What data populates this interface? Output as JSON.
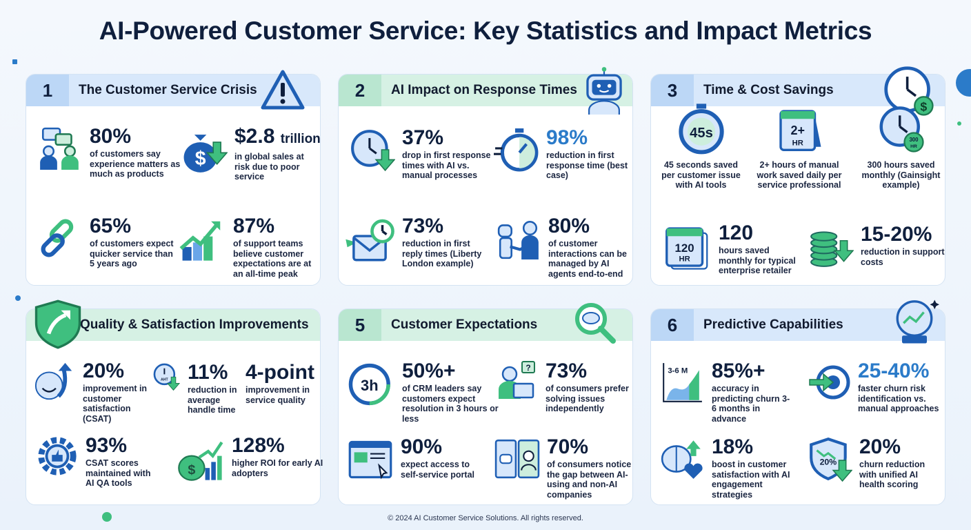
{
  "title": "AI-Powered Customer Service: Key Statistics and Impact Metrics",
  "footer": "© 2024 AI Customer Service Solutions. All rights reserved.",
  "colors": {
    "navy": "#0f1f3d",
    "blue": "#2b7bc9",
    "green": "#3fbf7f",
    "blue_header": "#d8e8fb",
    "green_header": "#d6f1e4"
  },
  "panels": [
    {
      "number": "1",
      "title": "The Customer Service Crisis",
      "header_icon": "warning-icon",
      "stats": [
        {
          "value": "80%",
          "desc": "of customers say experience matters as much as products",
          "icon": "people-chat-icon"
        },
        {
          "value": "$2.8",
          "unit": "trillion",
          "desc": "in global sales at risk due to poor service",
          "icon": "money-bag-down-icon"
        },
        {
          "value": "65%",
          "desc": "of customers expect quicker service than 5 years ago",
          "icon": "broken-link-icon"
        },
        {
          "value": "87%",
          "desc": "of support teams believe customer expectations are at an all-time peak",
          "icon": "growth-chart-icon"
        }
      ]
    },
    {
      "number": "2",
      "title": "AI Impact on Response Times",
      "header_icon": "robot-icon",
      "stats": [
        {
          "value": "37%",
          "desc": "drop in first response times with AI vs. manual processes",
          "icon": "clock-down-icon"
        },
        {
          "value": "98%",
          "desc": "reduction in first response time (best case)",
          "icon": "stopwatch-icon",
          "accent": true
        },
        {
          "value": "73%",
          "desc": "reduction in first reply times (Liberty London example)",
          "icon": "email-clock-icon"
        },
        {
          "value": "80%",
          "desc": "of customer interactions can be managed by AI agents end-to-end",
          "icon": "robot-handshake-icon"
        }
      ]
    },
    {
      "number": "3",
      "title": "Time & Cost Savings",
      "header_icon": "clock-dollar-icon",
      "stats": [
        {
          "desc": "45 seconds saved per customer issue with AI tools",
          "icon": "stopwatch-45s-icon",
          "icon_text": "45s"
        },
        {
          "desc": "2+ hours of manual work saved daily per service professional",
          "icon": "calendar-icon",
          "icon_text": "2+ HR"
        },
        {
          "desc": "300 hours saved monthly (Gainsight example)",
          "icon": "clock-badge-icon",
          "icon_text": "300 HR"
        },
        {
          "value": "120",
          "desc": "hours saved monthly for typical enterprise retailer",
          "icon": "calendar-stack-icon",
          "icon_text": "120 HR"
        },
        {
          "value": "15-20%",
          "desc": "reduction in support costs",
          "icon": "coins-down-icon"
        }
      ]
    },
    {
      "number": "",
      "title": "Quality & Satisfaction Improvements",
      "header_icon": "shield-arrow-icon",
      "stats": [
        {
          "value": "20%",
          "desc": "improvement in customer satisfaction (CSAT)",
          "icon": "smiley-up-icon"
        },
        {
          "value": "11%",
          "desc": "reduction in average handle time",
          "icon": "clock-aht-icon",
          "icon_text": "AHT"
        },
        {
          "value": "4-point",
          "desc": "improvement in service quality"
        },
        {
          "value": "93%",
          "desc": "CSAT scores maintained with AI QA tools",
          "icon": "gear-thumbs-up-icon"
        },
        {
          "value": "128%",
          "desc": "higher ROI for early AI adopters",
          "icon": "money-chart-icon"
        }
      ]
    },
    {
      "number": "5",
      "title": "Customer Expectations",
      "header_icon": "magnifier-chat-icon",
      "stats": [
        {
          "value": "50%+",
          "desc": "of CRM leaders say customers expect resolution in 3 hours or less",
          "icon": "clock-3h-icon",
          "icon_text": "3h"
        },
        {
          "value": "73%",
          "desc": "of consumers prefer solving issues independently",
          "icon": "person-laptop-icon"
        },
        {
          "value": "90%",
          "desc": "expect access to self-service portal",
          "icon": "browser-cursor-icon"
        },
        {
          "value": "70%",
          "desc": "of consumers notice the gap between AI-using and non-AI companies",
          "icon": "robot-vs-human-icon"
        }
      ]
    },
    {
      "number": "6",
      "title": "Predictive Capabilities",
      "header_icon": "crystal-ball-icon",
      "stats": [
        {
          "value": "85%+",
          "desc": "accuracy in predicting churn 3-6 months in advance",
          "icon": "trend-chart-icon",
          "icon_text": "3-6 M"
        },
        {
          "value": "25-40%",
          "desc": "faster churn risk identification vs. manual approaches",
          "icon": "target-arrow-icon",
          "accent": true
        },
        {
          "value": "18%",
          "desc": "boost in customer satisfaction with AI engagement strategies",
          "icon": "brain-heart-icon"
        },
        {
          "value": "20%",
          "desc": "churn reduction with unified AI health scoring",
          "icon": "shield-percent-icon",
          "icon_text": "20%"
        }
      ]
    }
  ]
}
